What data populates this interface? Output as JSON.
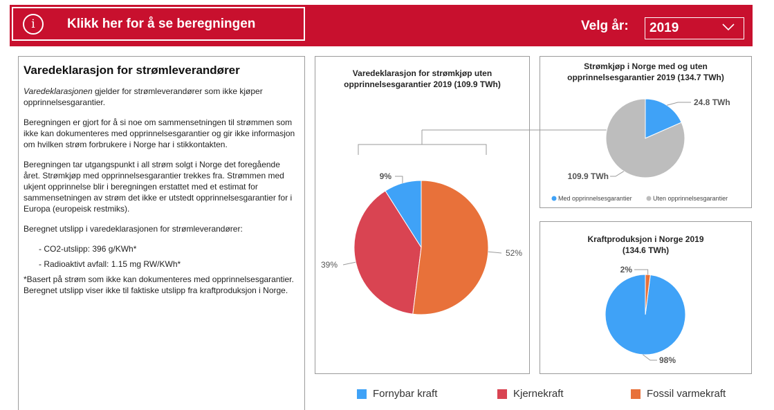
{
  "header": {
    "calc_button_label": "Klikk her for å se beregningen",
    "info_icon_glyph": "i",
    "year_label": "Velg år:",
    "year_value": "2019"
  },
  "text_panel": {
    "title": "Varedeklarasjon for strømleverandører",
    "intro_italic": "Varedeklarasjonen",
    "intro_rest": " gjelder for strømleverandører som ikke kjøper opprinnelsesgarantier.",
    "para2": "Beregningen er gjort for å si noe om sammensetningen til strømmen som ikke kan dokumenteres med opprinnelsesgarantier og gir ikke informasjon om hvilken strøm forbrukere i Norge har i stikkontakten.",
    "para3": "Beregningen tar utgangspunkt i all strøm solgt i Norge det foregående året. Strømkjøp med opprinnelsesgarantier trekkes fra. Strømmen med ukjent opprinnelse blir i beregningen erstattet med et estimat for sammensetningen av strøm det ikke er utstedt opprinnelsesgarantier for i Europa (europeisk restmiks).",
    "para4": "Beregnet utslipp i varedeklarasjonen for strømleverandører:",
    "bullet1": "- CO2-utslipp: 396 g/KWh*",
    "bullet2": "- Radioaktivt avfall: 1.15 mg RW/KWh*",
    "footnote": "*Basert på strøm som ikke kan dokumenteres med opprinnelsesgarantier. Beregnet utslipp viser ikke til faktiske utslipp fra kraftproduksjon i Norge."
  },
  "colors": {
    "brand_red": "#c8102e",
    "fornybar": "#3fa2f7",
    "kjerne": "#d94452",
    "fossil": "#e8713a",
    "med_og": "#3fa2f7",
    "uten_og": "#bdbdbd"
  },
  "icons": {
    "info": "info-circle-icon",
    "dropdown": "chevron-down-icon"
  },
  "chart_data": [
    {
      "type": "pie",
      "title_line1": "Varedeklarasjon for strømkjøp uten",
      "title_line2": "opprinnelsesgarantier 2019 (109.9 TWh)",
      "slices": [
        {
          "name": "Fornybar kraft",
          "value": 9,
          "label": "9%"
        },
        {
          "name": "Kjernekraft",
          "value": 39,
          "label": "39%"
        },
        {
          "name": "Fossil varmekraft",
          "value": 52,
          "label": "52%"
        }
      ]
    },
    {
      "type": "pie",
      "title_line1": "Strømkjøp i Norge med og uten",
      "title_line2": "opprinnelsesgarantier 2019 (134.7 TWh)",
      "slices": [
        {
          "name": "Med opprinnelsesgarantier",
          "value": 24.8,
          "label": "24.8  TWh"
        },
        {
          "name": "Uten opprinnelsesgarantier",
          "value": 109.9,
          "label": "109.9  TWh"
        }
      ],
      "legend": [
        {
          "name": "Med opprinnelsesgarantier"
        },
        {
          "name": "Uten opprinnelsesgarantier"
        }
      ]
    },
    {
      "type": "pie",
      "title_line1": "Kraftproduksjon i Norge 2019",
      "title_line2": "(134.6 TWh)",
      "slices": [
        {
          "name": "Fornybar kraft",
          "value": 98,
          "label": "98%"
        },
        {
          "name": "Fossil varmekraft",
          "value": 2,
          "label": "2%"
        }
      ]
    }
  ],
  "bottom_legend": [
    {
      "name": "Fornybar kraft"
    },
    {
      "name": "Kjernekraft"
    },
    {
      "name": "Fossil varmekraft"
    }
  ]
}
